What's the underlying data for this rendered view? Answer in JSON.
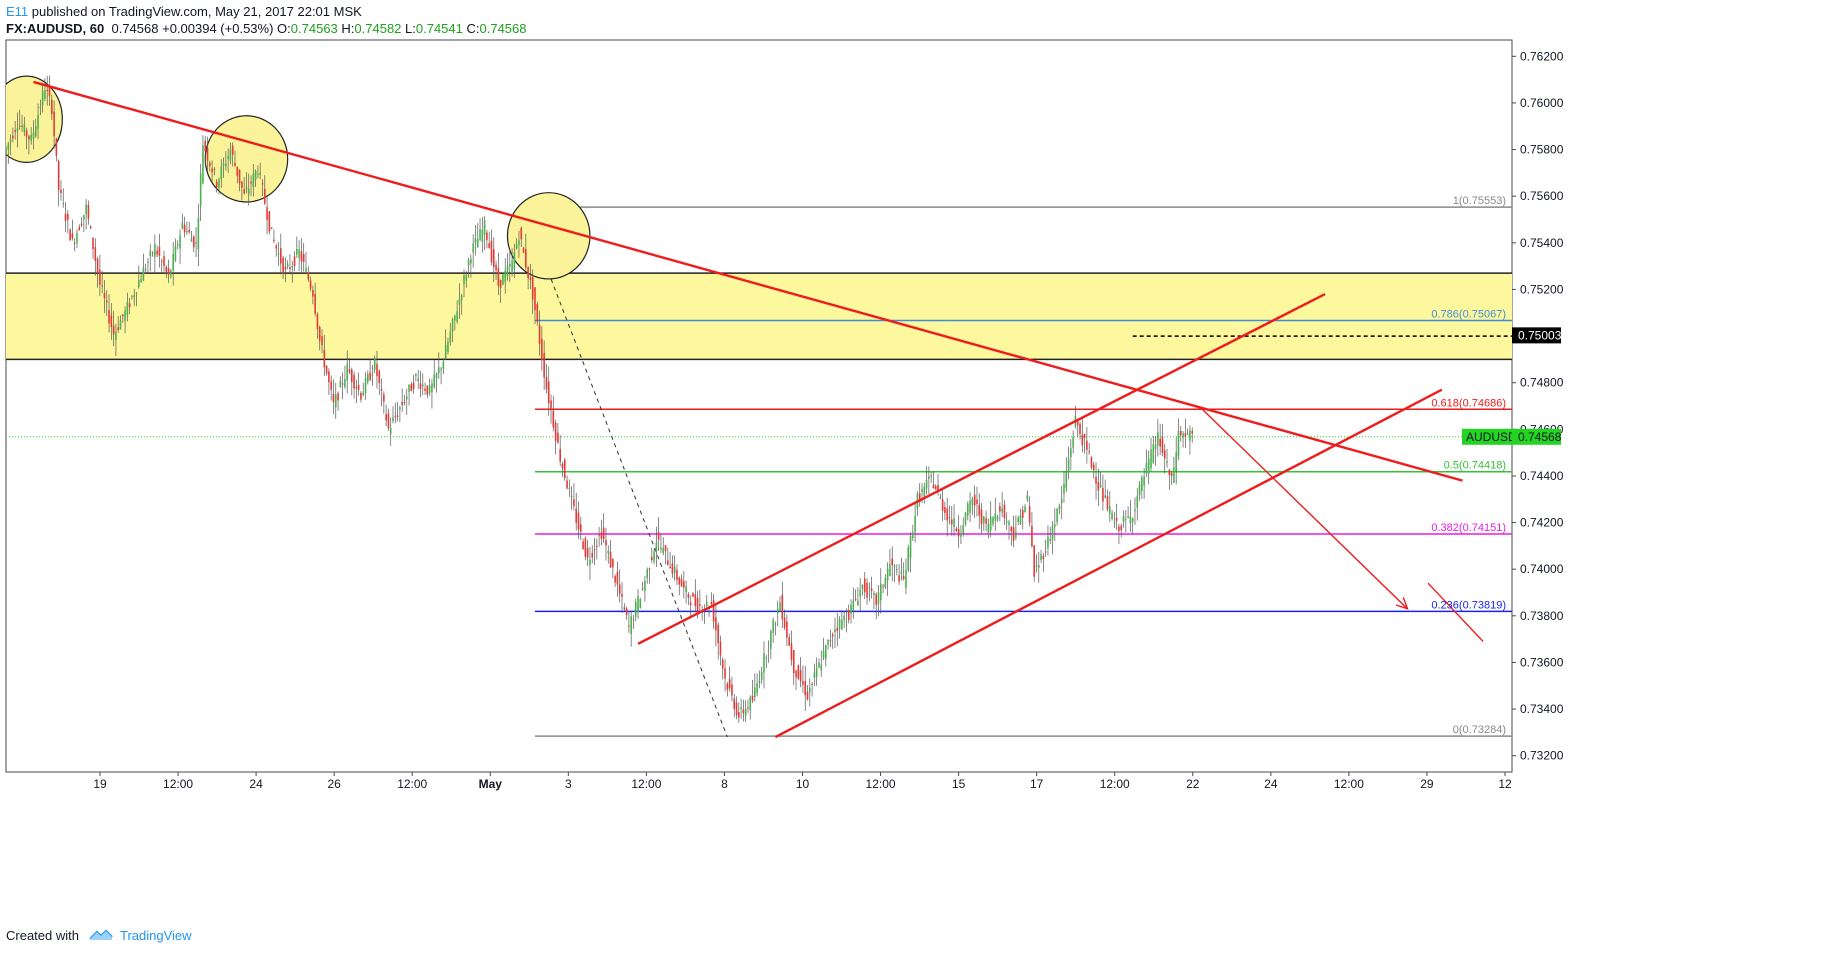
{
  "header": {
    "line1": {
      "user": "E11",
      "text": " published on TradingView.com, May 21, 2017 22:01 MSK"
    },
    "line2": {
      "symbol": "FX:AUDUSD, 60",
      "last": "0.74568",
      "change": "+0.00394 (+0.53%)",
      "o_label": "O:",
      "o_value": "0.74563",
      "h_label": "H:",
      "h_value": "0.74582",
      "l_label": "L:",
      "l_value": "0.74541",
      "c_label": "C:",
      "c_value": "0.74568"
    }
  },
  "footer": {
    "created_with": "Created with",
    "brand": "TradingView"
  },
  "colors": {
    "up": "#4caf50",
    "down": "#e53935",
    "trendline": "#ee1c1c",
    "zone": "#fdf79e",
    "fib_1": "#8a8a8a",
    "fib_786": "#3f8fd8",
    "fib_618": "#ee1c1c",
    "fib_5": "#35c235",
    "fib_382": "#e81de8",
    "fib_236": "#1a24e8",
    "fib_0": "#8a8a8a",
    "last_price": "#23d423",
    "circle": "#fbf39a"
  },
  "chart_data": {
    "type": "candlestick",
    "symbol": "FX:AUDUSD",
    "interval": "60",
    "ylim": [
      0.7313,
      0.7627
    ],
    "y_ticks": [
      "0.76200",
      "0.76000",
      "0.75800",
      "0.75600",
      "0.75400",
      "0.75200",
      "0.74800",
      "0.74600",
      "0.74400",
      "0.74200",
      "0.74000",
      "0.73800",
      "0.73600",
      "0.73400",
      "0.73200"
    ],
    "x_ticks": [
      "19",
      "12:00",
      "24",
      "26",
      "12:00",
      "May",
      "3",
      "12:00",
      "8",
      "10",
      "12:00",
      "15",
      "17",
      "12:00",
      "22",
      "24",
      "12:00",
      "29",
      "12"
    ],
    "x_ticks_bold": [
      "May"
    ],
    "price_path": [
      [
        0,
        0.7578
      ],
      [
        2,
        0.7592
      ],
      [
        4,
        0.7584
      ],
      [
        6,
        0.7607
      ],
      [
        7,
        0.7598
      ],
      [
        8,
        0.7563
      ],
      [
        10,
        0.754
      ],
      [
        12,
        0.7555
      ],
      [
        14,
        0.7522
      ],
      [
        16,
        0.7501
      ],
      [
        18,
        0.7512
      ],
      [
        20,
        0.7526
      ],
      [
        22,
        0.7538
      ],
      [
        24,
        0.7525
      ],
      [
        26,
        0.7548
      ],
      [
        28,
        0.7539
      ],
      [
        29,
        0.7583
      ],
      [
        31,
        0.7566
      ],
      [
        33,
        0.758
      ],
      [
        35,
        0.756
      ],
      [
        37,
        0.7572
      ],
      [
        39,
        0.7543
      ],
      [
        41,
        0.7527
      ],
      [
        43,
        0.7536
      ],
      [
        45,
        0.7519
      ],
      [
        46,
        0.7498
      ],
      [
        48,
        0.747
      ],
      [
        50,
        0.7486
      ],
      [
        52,
        0.7475
      ],
      [
        54,
        0.7488
      ],
      [
        56,
        0.746
      ],
      [
        58,
        0.7471
      ],
      [
        60,
        0.7482
      ],
      [
        62,
        0.7476
      ],
      [
        64,
        0.749
      ],
      [
        66,
        0.7512
      ],
      [
        68,
        0.7536
      ],
      [
        70,
        0.7547
      ],
      [
        72,
        0.7522
      ],
      [
        74,
        0.7531
      ],
      [
        75,
        0.7544
      ],
      [
        77,
        0.7518
      ],
      [
        79,
        0.7478
      ],
      [
        81,
        0.7448
      ],
      [
        83,
        0.7425
      ],
      [
        85,
        0.7404
      ],
      [
        87,
        0.7416
      ],
      [
        89,
        0.7396
      ],
      [
        91,
        0.7375
      ],
      [
        93,
        0.7392
      ],
      [
        95,
        0.7413
      ],
      [
        97,
        0.7402
      ],
      [
        99,
        0.7391
      ],
      [
        101,
        0.7384
      ],
      [
        103,
        0.7385
      ],
      [
        105,
        0.7353
      ],
      [
        107,
        0.7337
      ],
      [
        109,
        0.7344
      ],
      [
        111,
        0.7365
      ],
      [
        113,
        0.7386
      ],
      [
        115,
        0.7358
      ],
      [
        117,
        0.7346
      ],
      [
        119,
        0.7361
      ],
      [
        121,
        0.7375
      ],
      [
        123,
        0.7381
      ],
      [
        125,
        0.7393
      ],
      [
        127,
        0.7386
      ],
      [
        129,
        0.7402
      ],
      [
        131,
        0.7395
      ],
      [
        133,
        0.743
      ],
      [
        135,
        0.7439
      ],
      [
        137,
        0.7425
      ],
      [
        139,
        0.7416
      ],
      [
        141,
        0.743
      ],
      [
        143,
        0.7418
      ],
      [
        145,
        0.7427
      ],
      [
        147,
        0.7415
      ],
      [
        149,
        0.743
      ],
      [
        150,
        0.7398
      ],
      [
        152,
        0.7412
      ],
      [
        154,
        0.743
      ],
      [
        156,
        0.7464
      ],
      [
        158,
        0.7448
      ],
      [
        160,
        0.7431
      ],
      [
        162,
        0.7418
      ],
      [
        164,
        0.7422
      ],
      [
        166,
        0.744
      ],
      [
        168,
        0.7457
      ],
      [
        170,
        0.7437
      ],
      [
        171,
        0.7458
      ],
      [
        173,
        0.7457
      ]
    ],
    "trendlines": [
      {
        "name": "descending",
        "from": [
          4,
          0.7609
        ],
        "to": [
          212,
          0.7438
        ]
      },
      {
        "name": "channel-lower",
        "from": [
          112,
          0.7328
        ],
        "to": [
          209,
          0.7477
        ]
      },
      {
        "name": "channel-upper",
        "from": [
          92,
          0.7368
        ],
        "to": [
          192,
          0.7518
        ]
      },
      {
        "name": "projection",
        "from": [
          174,
          0.7469
        ],
        "to": [
          204,
          0.7383
        ]
      },
      {
        "name": "projection-extension",
        "from": [
          207,
          0.7394
        ],
        "to": [
          215,
          0.7369
        ]
      }
    ],
    "dashed_path": [
      [
        76,
        0.755
      ],
      [
        105,
        0.7328
      ]
    ],
    "zone": {
      "from": 0.749,
      "to": 0.7527
    },
    "circles": [
      {
        "center": [
          3,
          0.7593
        ],
        "rx": 5.2,
        "ry": 0.00185
      },
      {
        "center": [
          35,
          0.7576
        ],
        "rx": 6.0,
        "ry": 0.00185
      },
      {
        "center": [
          79,
          0.7543
        ],
        "rx": 6.0,
        "ry": 0.00185
      }
    ],
    "hlines": [
      {
        "value": 0.75,
        "from": 164,
        "style": "dashed",
        "color": "#000000"
      }
    ],
    "fib_levels": [
      {
        "ratio": "1",
        "value": 0.75553,
        "label": "1(0.75553)",
        "color": "#8a8a8a"
      },
      {
        "ratio": "0.786",
        "value": 0.75067,
        "label": "0.786(0.75067)",
        "color": "#3f8fd8"
      },
      {
        "ratio": "0.618",
        "value": 0.74686,
        "label": "0.618(0.74686)",
        "color": "#ee1c1c"
      },
      {
        "ratio": "0.5",
        "value": 0.74418,
        "label": "0.5(0.74418)",
        "color": "#35c235"
      },
      {
        "ratio": "0.382",
        "value": 0.74151,
        "label": "0.382(0.74151)",
        "color": "#e81de8"
      },
      {
        "ratio": "0.236",
        "value": 0.73819,
        "label": "0.236(0.73819)",
        "color": "#1a24e8"
      },
      {
        "ratio": "0",
        "value": 0.73284,
        "label": "0(0.73284)",
        "color": "#8a8a8a"
      }
    ],
    "price_labels": [
      {
        "text": "0.75003",
        "value": 0.75003,
        "style": "dark"
      },
      {
        "text": "0.74568",
        "value": 0.74568,
        "style": "green",
        "name": "AUDUSD"
      }
    ],
    "last_price": 0.74568,
    "grid": false
  }
}
